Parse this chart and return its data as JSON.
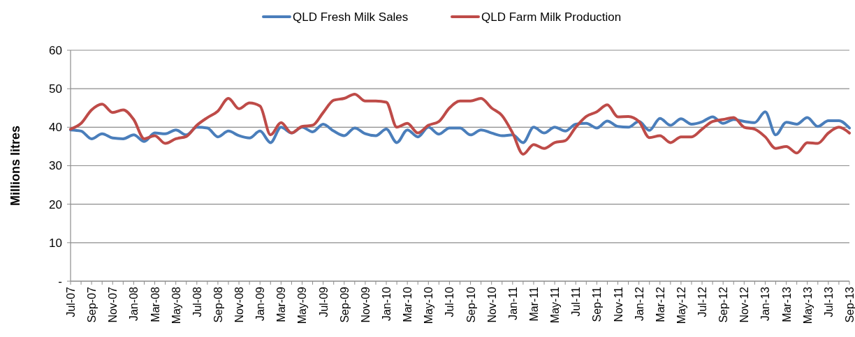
{
  "chart_data": {
    "type": "line",
    "ylabel": "Millions litres",
    "categories": [
      "Jul-07",
      null,
      "Sep-07",
      null,
      "Nov-07",
      null,
      "Jan-08",
      null,
      "Mar-08",
      null,
      "May-08",
      null,
      "Jul-08",
      null,
      "Sep-08",
      null,
      "Nov-08",
      null,
      "Jan-09",
      null,
      "Mar-09",
      null,
      "May-09",
      null,
      "Jul-09",
      null,
      "Sep-09",
      null,
      "Nov-09",
      null,
      "Jan-10",
      null,
      "Mar-10",
      null,
      "May-10",
      null,
      "Jul-10",
      null,
      "Sep-10",
      null,
      "Nov-10",
      null,
      "Jan-11",
      null,
      "Mar-11",
      null,
      "May-11",
      null,
      "Jul-11",
      null,
      "Sep-11",
      null,
      "Nov-11",
      null,
      "Jan-12",
      null,
      "Mar-12",
      null,
      "May-12",
      null,
      "Jul-12",
      null,
      "Sep-12",
      null,
      "Nov-12",
      null,
      "Jan-13",
      null,
      "Mar-13",
      null,
      "May-13",
      null,
      "Jul-13",
      null,
      "Sep-13"
    ],
    "series": [
      {
        "name": "QLD Fresh Milk Sales",
        "color": "#4a7ebb",
        "values": [
          39.3,
          39,
          37,
          38.3,
          37.2,
          37,
          38,
          36.3,
          38.5,
          38.3,
          39.3,
          38,
          40,
          39.8,
          37.5,
          39,
          37.8,
          37.2,
          39,
          36,
          40,
          38.5,
          40,
          38.8,
          40.8,
          39,
          37.8,
          39.8,
          38.3,
          37.8,
          39.5,
          36,
          39.3,
          37.5,
          40,
          38.2,
          39.8,
          39.8,
          38,
          39.3,
          38.5,
          37.8,
          38,
          36,
          40,
          38.5,
          40,
          39,
          40.8,
          41,
          39.8,
          41.6,
          40.2,
          40,
          41.5,
          39.2,
          42.3,
          40.5,
          42.2,
          40.8,
          41.4,
          42.7,
          41,
          42,
          41.5,
          41.2,
          44,
          38,
          41.3,
          40.8,
          42.5,
          40.2,
          41.7,
          41.7,
          39.8
        ]
      },
      {
        "name": "QLD Farm Milk Production",
        "color": "#be4b48",
        "values": [
          39.5,
          41,
          44.5,
          46,
          43.8,
          44.5,
          42,
          37,
          37.8,
          35.8,
          37,
          37.6,
          40.5,
          42.5,
          44.2,
          47.5,
          44.8,
          46.3,
          45.5,
          38,
          41.2,
          38.5,
          40.2,
          40.5,
          43.8,
          47,
          47.5,
          48.6,
          46.8,
          46.8,
          46.5,
          40,
          41,
          38.5,
          40.5,
          41.5,
          45,
          46.8,
          46.8,
          47.5,
          45,
          43,
          38.5,
          33,
          35.5,
          34.5,
          36,
          36.5,
          40,
          42.8,
          44,
          45.8,
          42.7,
          42.8,
          41.5,
          37.3,
          37.8,
          36,
          37.5,
          37.5,
          39.5,
          41.5,
          42,
          42.5,
          40,
          39.5,
          37.5,
          34.5,
          35,
          33.3,
          36,
          35.8,
          38.5,
          40,
          38.5
        ]
      }
    ],
    "ylim": [
      0,
      60
    ],
    "yticks": [
      {
        "value": 0,
        "label": "-"
      },
      10,
      20,
      30,
      40,
      50,
      60
    ],
    "grid": "y",
    "legend": "top",
    "marker": "none",
    "line_style": "solid"
  }
}
